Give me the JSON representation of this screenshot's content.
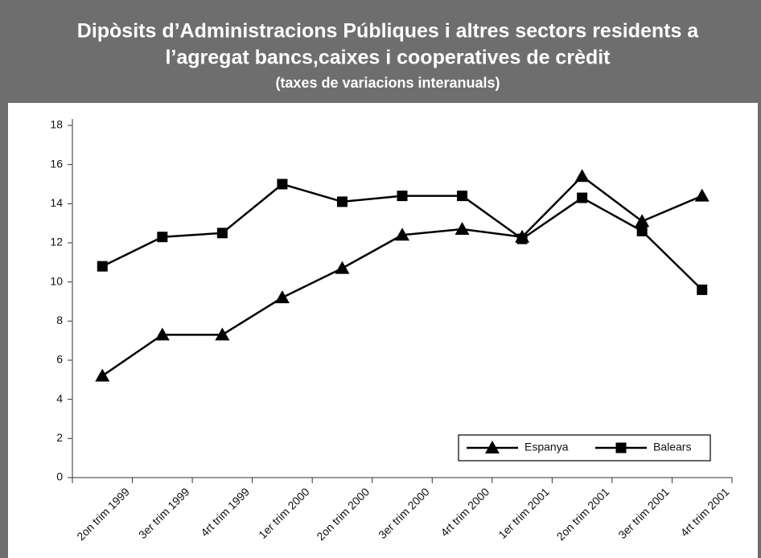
{
  "chart_data": {
    "type": "line",
    "title": [
      "Dipòsits d’Administracions Públiques i altres sectors residents a",
      "l’agregat bancs,caixes i cooperatives de crèdit"
    ],
    "subtitle": "(taxes de variacions interanuals)",
    "categories": [
      "2on trim 1999",
      "3er trim 1999",
      "4rt trim 1999",
      "1er trim 2000",
      "2on trim 2000",
      "3er trim 2000",
      "4rt trim 2000",
      "1er trim 2001",
      "2on trim 2001",
      "3er trim 2001",
      "4rt trim 2001"
    ],
    "series": [
      {
        "name": "Espanya",
        "color": "#000000",
        "marker": "triangle",
        "values": [
          5.2,
          7.3,
          7.3,
          9.2,
          10.7,
          12.4,
          12.7,
          12.3,
          15.4,
          13.1,
          14.4
        ]
      },
      {
        "name": "Balears",
        "color": "#000000",
        "marker": "square",
        "values": [
          10.8,
          12.3,
          12.5,
          15.0,
          14.1,
          14.4,
          14.4,
          12.2,
          14.3,
          12.6,
          9.6
        ]
      }
    ],
    "ylim": [
      0,
      18
    ],
    "yticks": [
      0,
      2,
      4,
      6,
      8,
      10,
      12,
      14,
      16,
      18
    ],
    "legend": "lower right"
  }
}
